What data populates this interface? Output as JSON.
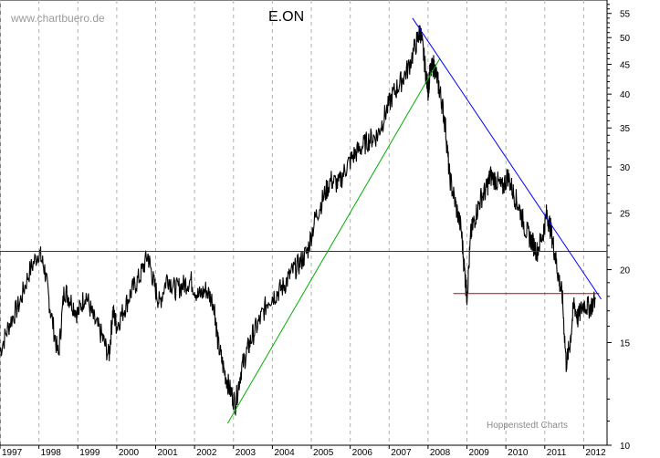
{
  "watermark": "www.chartbuero.de",
  "credit": "Hoppenstedt Charts",
  "chart_data": {
    "type": "line",
    "title": "E.ON",
    "xlabel": "",
    "ylabel": "",
    "yscale": "log",
    "ylim": [
      10,
      58
    ],
    "xlim": [
      1997.0,
      2012.6
    ],
    "grid": "vertical dashed at years",
    "y_ticks": [
      10,
      15,
      20,
      25,
      30,
      35,
      40,
      45,
      50,
      55
    ],
    "x_ticks": [
      "1997",
      "1998",
      "1999",
      "2000",
      "2001",
      "2002",
      "2003",
      "2004",
      "2005",
      "2006",
      "2007",
      "2008",
      "2009",
      "2010",
      "2011",
      "2012"
    ],
    "colors": {
      "price": "#000000",
      "resistance": "#c00000",
      "uptrend": "#00b000",
      "downtrend": "#0000ff",
      "grid": "#b0b0b0"
    },
    "series": [
      {
        "x": [
          1997.0,
          1997.25,
          1997.5,
          1997.75,
          1998.0,
          1998.15,
          1998.3,
          1998.5,
          1998.65,
          1998.8,
          1999.0,
          1999.2,
          1999.4,
          1999.6,
          1999.8,
          1999.9,
          2000.0,
          2000.2,
          2000.4,
          2000.6,
          2000.8,
          2000.95,
          2001.1,
          2001.3,
          2001.5,
          2001.7,
          2001.9,
          2002.1,
          2002.3,
          2002.5,
          2002.6,
          2002.75,
          2002.9,
          2003.05,
          2003.2,
          2003.35,
          2003.5,
          2003.7,
          2003.9,
          2004.1,
          2004.3,
          2004.5,
          2004.7,
          2004.9,
          2005.1,
          2005.3,
          2005.5,
          2005.7,
          2005.9,
          2006.1,
          2006.3,
          2006.5,
          2006.7,
          2006.9,
          2007.1,
          2007.3,
          2007.5,
          2007.7,
          2007.8,
          2007.9,
          2008.0,
          2008.05,
          2008.15,
          2008.25,
          2008.35,
          2008.45,
          2008.55,
          2008.7,
          2008.85,
          2008.95,
          2009.0,
          2009.1,
          2009.2,
          2009.35,
          2009.5,
          2009.6,
          2009.75,
          2009.9,
          2010.05,
          2010.2,
          2010.35,
          2010.5,
          2010.65,
          2010.8,
          2010.95,
          2011.05,
          2011.15,
          2011.25,
          2011.35,
          2011.45,
          2011.55,
          2011.65,
          2011.75,
          2011.85,
          2012.0,
          2012.15,
          2012.3
        ],
        "values": [
          14.5,
          16.2,
          17.5,
          19.8,
          21.5,
          20.0,
          17.0,
          14.2,
          18.5,
          17.8,
          16.8,
          18.2,
          16.5,
          15.5,
          14.2,
          17.0,
          16.0,
          17.2,
          18.5,
          19.5,
          21.2,
          19.0,
          17.5,
          19.5,
          18.5,
          18.8,
          19.2,
          18.0,
          18.5,
          17.5,
          15.0,
          13.5,
          12.5,
          11.8,
          13.5,
          14.5,
          15.5,
          16.5,
          17.8,
          18.2,
          18.8,
          19.8,
          20.5,
          21.5,
          24.5,
          26.5,
          28.5,
          28.0,
          30.0,
          31.5,
          32.5,
          33.5,
          34.0,
          37.0,
          40.0,
          42.0,
          44.5,
          49.0,
          51.5,
          46.0,
          40.5,
          43.5,
          45.0,
          42.0,
          39.0,
          35.0,
          29.0,
          26.0,
          23.5,
          19.5,
          18.0,
          23.0,
          24.5,
          26.5,
          27.5,
          29.0,
          28.5,
          27.5,
          29.0,
          27.0,
          25.5,
          23.5,
          22.5,
          21.5,
          23.0,
          25.0,
          23.5,
          21.5,
          19.5,
          18.0,
          13.8,
          15.0,
          17.5,
          16.5,
          17.5,
          17.2,
          17.8
        ]
      }
    ],
    "lines": [
      {
        "name": "resistance-horizontal",
        "x": [
          1997.0,
          2012.6
        ],
        "y": [
          21.5,
          21.5
        ]
      },
      {
        "name": "support-horizontal",
        "x": [
          2008.65,
          2012.4
        ],
        "y": [
          18.2,
          18.2
        ]
      },
      {
        "name": "uptrend",
        "x": [
          2002.85,
          2008.3
        ],
        "y": [
          10.9,
          46.0
        ]
      },
      {
        "name": "downtrend",
        "x": [
          2007.6,
          2012.45
        ],
        "y": [
          54.0,
          17.8
        ]
      }
    ]
  }
}
